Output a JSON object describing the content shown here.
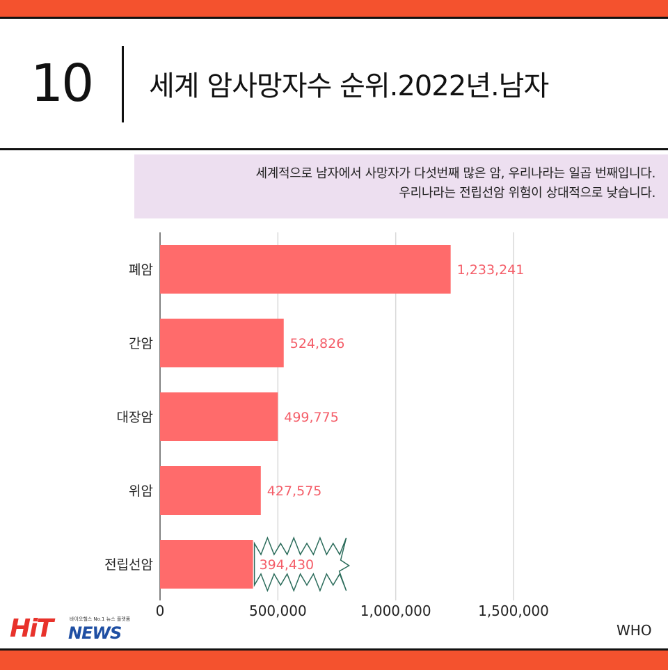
{
  "header": {
    "rank": "10",
    "title": "세계 암사망자수 순위.2022년.남자"
  },
  "callout": {
    "line1": "세계적으로 남자에서 사망자가 다섯번째 많은 암, 우리나라는 일곱 번째입니다.",
    "line2": "우리나라는 전립선암 위험이 상대적으로 낮습니다."
  },
  "chart_data": {
    "type": "bar",
    "orientation": "horizontal",
    "categories": [
      "폐암",
      "간암",
      "대장암",
      "위암",
      "전립선암"
    ],
    "values": [
      1233241,
      524826,
      499775,
      427575,
      394430
    ],
    "value_labels": [
      "1,233,241",
      "524,826",
      "499,775",
      "427,575",
      "394,430"
    ],
    "xlim": [
      0,
      1500000
    ],
    "x_ticks": [
      0,
      500000,
      1000000,
      1500000
    ],
    "x_tick_labels": [
      "0",
      "500,000",
      "1,000,000",
      "1,500,000"
    ],
    "grid": "vertical",
    "highlight_index": 4,
    "colors": {
      "bar": "#ff6b6b",
      "value_text": "#f45d68",
      "grid": "#d9d9d9",
      "burst_outline": "#2a6b5a"
    }
  },
  "footer": {
    "logo_primary": "HiT",
    "logo_secondary": "NEWS",
    "logo_tagline": "바이오헬스 No.1 뉴스 플랫폼",
    "source": "WHO"
  },
  "theme": {
    "accent": "#f4522e",
    "callout_bg": "#eddff0"
  }
}
